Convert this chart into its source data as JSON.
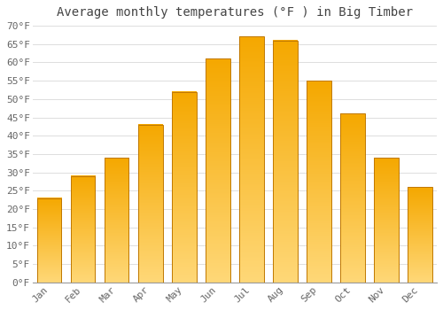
{
  "title": "Average monthly temperatures (°F ) in Big Timber",
  "months": [
    "Jan",
    "Feb",
    "Mar",
    "Apr",
    "May",
    "Jun",
    "Jul",
    "Aug",
    "Sep",
    "Oct",
    "Nov",
    "Dec"
  ],
  "values": [
    23,
    29,
    34,
    43,
    52,
    61,
    67,
    66,
    55,
    46,
    34,
    26
  ],
  "bar_color_top": "#F5A800",
  "bar_color_bottom": "#FFD878",
  "bar_edge_color": "#C07800",
  "ylim": [
    0,
    70
  ],
  "ytick_step": 5,
  "background_color": "#FFFFFF",
  "plot_bg_color": "#FFFFFF",
  "grid_color": "#DDDDDD",
  "title_fontsize": 10,
  "tick_fontsize": 8,
  "title_color": "#444444",
  "tick_color": "#666666"
}
